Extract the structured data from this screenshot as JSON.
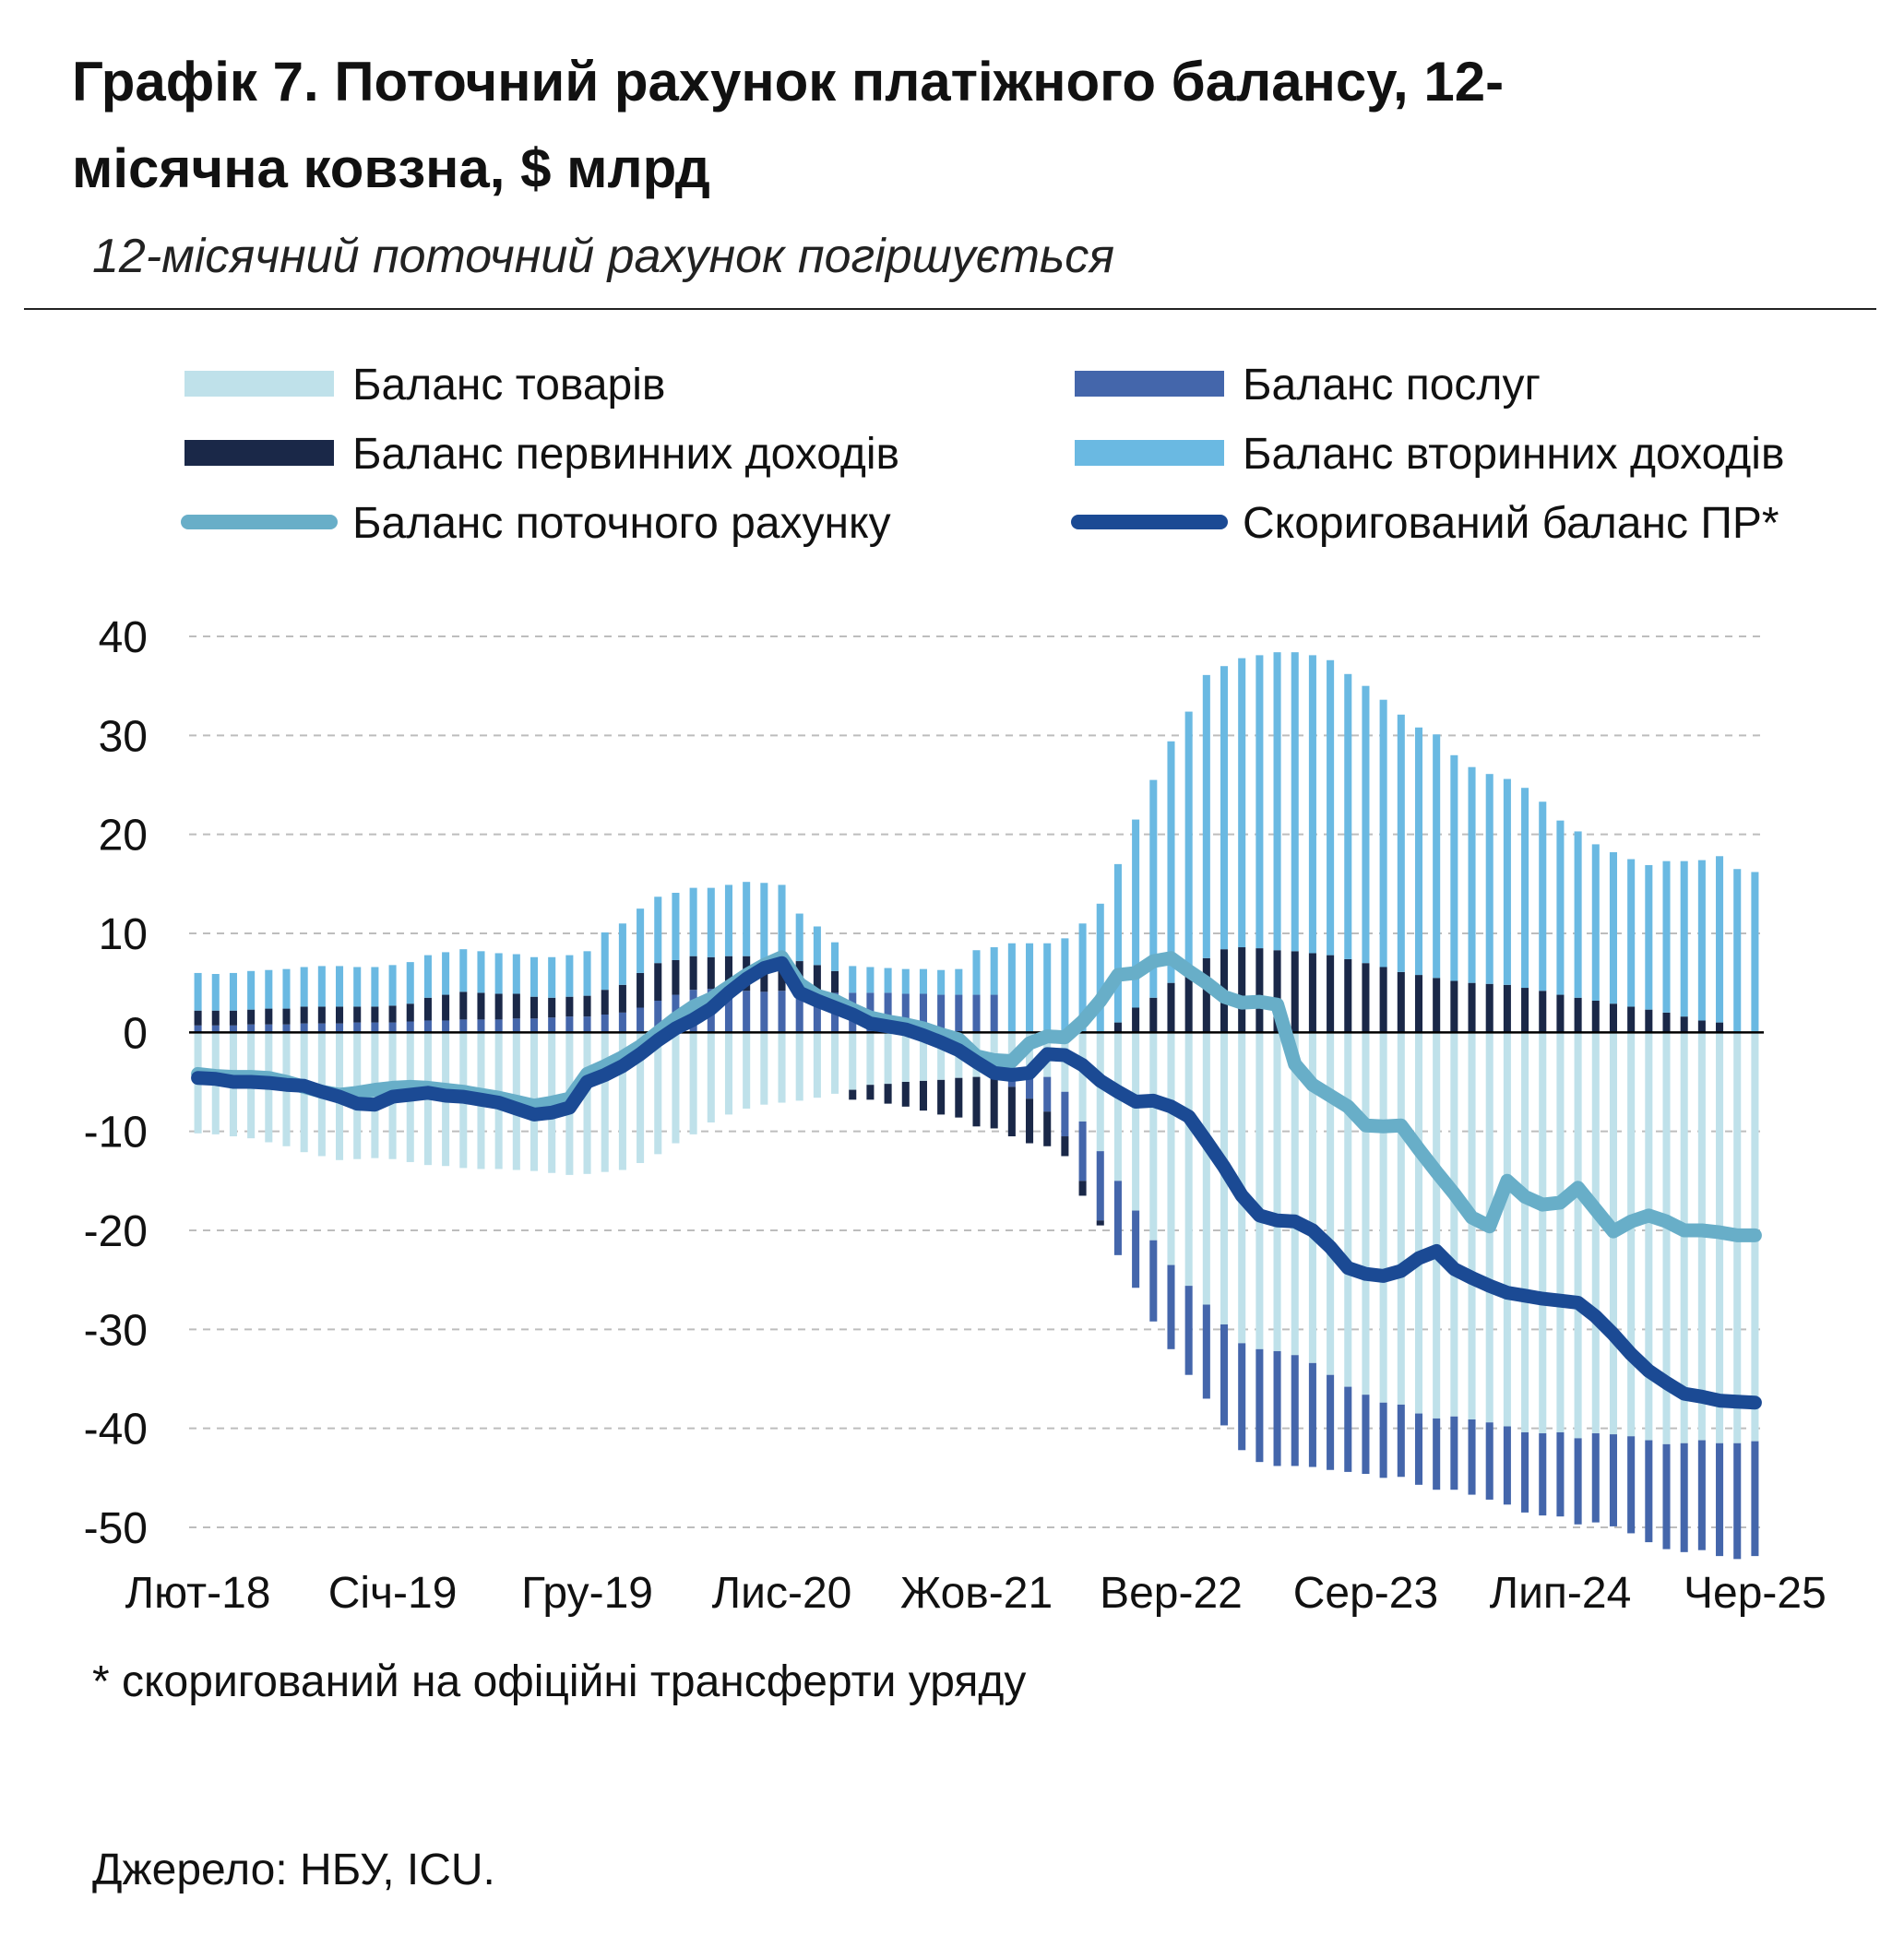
{
  "header": {
    "title": "Графік 7. Поточний рахунок платіжного балансу, 12-місячна ковзна, $ млрд",
    "subtitle": "12-місячний поточний рахунок погіршується"
  },
  "footer": {
    "footnote": "* скоригований на офіційні трансферти уряду",
    "source": "Джерело: НБУ, ICU."
  },
  "chart_data": {
    "type": "bar",
    "stacked": true,
    "legend_position": "top",
    "grid": true,
    "ylim": [
      -50,
      40
    ],
    "yticks": [
      "40",
      "30",
      "20",
      "10",
      "0",
      "-10",
      "-20",
      "-30",
      "-40",
      "-50"
    ],
    "x": [
      "Лют-18",
      "Бер-18",
      "Кві-18",
      "Тра-18",
      "Чер-18",
      "Лип-18",
      "Сер-18",
      "Вер-18",
      "Жов-18",
      "Лис-18",
      "Гру-18",
      "Січ-19",
      "Лют-19",
      "Бер-19",
      "Кві-19",
      "Тра-19",
      "Чер-19",
      "Лип-19",
      "Сер-19",
      "Вер-19",
      "Жов-19",
      "Лис-19",
      "Гру-19",
      "Січ-20",
      "Лют-20",
      "Бер-20",
      "Кві-20",
      "Тра-20",
      "Чер-20",
      "Лип-20",
      "Сер-20",
      "Вер-20",
      "Жов-20",
      "Лис-20",
      "Гру-20",
      "Січ-21",
      "Лют-21",
      "Бер-21",
      "Кві-21",
      "Тра-21",
      "Чер-21",
      "Лип-21",
      "Сер-21",
      "Вер-21",
      "Жов-21",
      "Лис-21",
      "Гру-21",
      "Січ-22",
      "Лют-22",
      "Бер-22",
      "Кві-22",
      "Тра-22",
      "Чер-22",
      "Лип-22",
      "Сер-22",
      "Вер-22",
      "Жов-22",
      "Лис-22",
      "Гру-22",
      "Січ-23",
      "Лют-23",
      "Бер-23",
      "Кві-23",
      "Тра-23",
      "Чер-23",
      "Лип-23",
      "Сер-23",
      "Вер-23",
      "Жов-23",
      "Лис-23",
      "Гру-23",
      "Січ-24",
      "Лют-24",
      "Бер-24",
      "Кві-24",
      "Тра-24",
      "Чер-24",
      "Лип-24",
      "Сер-24",
      "Вер-24",
      "Жов-24",
      "Лис-24",
      "Гру-24",
      "Січ-25",
      "Лют-25",
      "Бер-25",
      "Кві-25",
      "Тра-25",
      "Чер-25"
    ],
    "xtick_labels": [
      "Лют-18",
      "Січ-19",
      "Гру-19",
      "Лис-20",
      "Жов-21",
      "Вер-22",
      "Сер-23",
      "Лип-24",
      "Чер-25"
    ],
    "series": [
      {
        "name": "Баланс товарів",
        "kind": "bar",
        "color": "#bfe1ea",
        "values": [
          -10.2,
          -10.3,
          -10.5,
          -10.7,
          -11.1,
          -11.5,
          -12.1,
          -12.5,
          -12.9,
          -12.8,
          -12.7,
          -12.8,
          -13.1,
          -13.4,
          -13.5,
          -13.7,
          -13.8,
          -13.8,
          -13.9,
          -14,
          -14.2,
          -14.4,
          -14.3,
          -14.1,
          -13.9,
          -13.2,
          -12.3,
          -11.2,
          -10.3,
          -9.1,
          -8.3,
          -7.7,
          -7.3,
          -7.1,
          -6.9,
          -6.6,
          -6.2,
          -5.8,
          -5.3,
          -5.2,
          -5,
          -4.9,
          -4.8,
          -4.6,
          -4.5,
          -4.2,
          -4,
          -4.2,
          -4.5,
          -6,
          -9,
          -12,
          -15,
          -18,
          -21,
          -23.5,
          -25.6,
          -27.5,
          -29.5,
          -31.4,
          -32,
          -32.2,
          -32.6,
          -33.4,
          -34.6,
          -35.8,
          -36.6,
          -37.4,
          -37.6,
          -38.5,
          -39,
          -38.8,
          -39.1,
          -39.4,
          -39.8,
          -40.4,
          -40.5,
          -40.4,
          -41,
          -40.5,
          -40.6,
          -40.8,
          -41.2,
          -41.6,
          -41.5,
          -41.2,
          -41.5,
          -41.5,
          -41.3
        ]
      },
      {
        "name": "Баланс послуг",
        "kind": "bar",
        "color": "#4466ab",
        "values": [
          0.7,
          0.7,
          0.7,
          0.8,
          0.8,
          0.8,
          0.9,
          0.9,
          0.9,
          1,
          1,
          1,
          1.1,
          1.2,
          1.2,
          1.3,
          1.3,
          1.3,
          1.4,
          1.4,
          1.5,
          1.6,
          1.6,
          1.8,
          2,
          2.5,
          3.2,
          3.8,
          4.3,
          4.4,
          4.3,
          4.2,
          4.1,
          4.2,
          4.1,
          4,
          4,
          4,
          4,
          4,
          3.9,
          3.9,
          3.8,
          3.8,
          3.8,
          3.8,
          -1.5,
          -2.5,
          -3.5,
          -4.5,
          -6,
          -7,
          -7.5,
          -7.8,
          -8.2,
          -8.5,
          -9,
          -9.5,
          -10.2,
          -10.8,
          -11.4,
          -11.6,
          -11.2,
          -10.5,
          -9.6,
          -8.6,
          -8,
          -7.6,
          -7.3,
          -7.2,
          -7.2,
          -7.4,
          -7.6,
          -7.8,
          -7.9,
          -8.1,
          -8.3,
          -8.5,
          -8.7,
          -9,
          -9.3,
          -9.8,
          -10.3,
          -10.6,
          -11,
          -11.1,
          -11.4,
          -11.7,
          -11.6
        ]
      },
      {
        "name": "Баланс первинних доходів",
        "kind": "bar",
        "color": "#1a2848",
        "values": [
          1.5,
          1.5,
          1.5,
          1.5,
          1.6,
          1.6,
          1.7,
          1.7,
          1.7,
          1.6,
          1.6,
          1.7,
          1.8,
          2.3,
          2.6,
          2.8,
          2.7,
          2.6,
          2.5,
          2.2,
          2,
          2,
          2.1,
          2.5,
          2.8,
          3.5,
          3.8,
          3.5,
          3.4,
          3.2,
          3.4,
          3.5,
          3.2,
          3.2,
          3.1,
          2.8,
          2.2,
          -1,
          -1.5,
          -2,
          -2.5,
          -3,
          -3.5,
          -4,
          -5,
          -5.5,
          -5,
          -4.5,
          -3.5,
          -2,
          -1.5,
          -0.5,
          1,
          2.5,
          3.5,
          5,
          6.5,
          7.5,
          8.4,
          8.6,
          8.5,
          8.3,
          8.2,
          8,
          7.8,
          7.4,
          7,
          6.6,
          6.1,
          5.8,
          5.5,
          5.2,
          5.0,
          4.9,
          4.8,
          4.5,
          4.2,
          3.8,
          3.5,
          3.2,
          2.9,
          2.6,
          2.3,
          2,
          1.6,
          1.2,
          1,
          0,
          0
        ]
      },
      {
        "name": "Баланс вторинних доходів",
        "kind": "bar",
        "color": "#6ab9e2",
        "values": [
          3.8,
          3.7,
          3.8,
          3.9,
          3.9,
          4,
          4,
          4.1,
          4.1,
          4,
          4,
          4.1,
          4.2,
          4.3,
          4.3,
          4.3,
          4.2,
          4.1,
          4,
          4,
          4.1,
          4.2,
          4.5,
          5.8,
          6.2,
          6.5,
          6.7,
          6.8,
          6.9,
          7,
          7.2,
          7.5,
          7.8,
          7.5,
          4.8,
          3.9,
          2.9,
          2.7,
          2.6,
          2.5,
          2.5,
          2.5,
          2.5,
          2.6,
          4.5,
          4.8,
          9,
          9,
          9,
          9.5,
          11,
          13,
          16,
          19,
          22,
          24.4,
          25.9,
          28.6,
          28.6,
          29.2,
          29.6,
          30.1,
          30.2,
          30.1,
          29.8,
          28.8,
          28,
          27,
          26,
          25,
          24.6,
          22.8,
          21.8,
          21.2,
          20.8,
          20.2,
          19.1,
          17.6,
          16.8,
          15.8,
          15.3,
          14.9,
          14.6,
          15.3,
          15.7,
          16.2,
          16.8,
          16.5,
          16.2
        ]
      },
      {
        "name": "Баланс поточного рахунку",
        "kind": "line",
        "color": "#68aec8",
        "values": [
          -4.2,
          -4.4,
          -4.5,
          -4.5,
          -4.6,
          -5,
          -5.5,
          -6,
          -6.3,
          -6.1,
          -5.8,
          -5.6,
          -5.5,
          -5.6,
          -5.8,
          -6,
          -6.3,
          -6.6,
          -7,
          -7.4,
          -7.1,
          -6.7,
          -4.2,
          -3.4,
          -2.5,
          -1.4,
          0,
          1.4,
          2.6,
          3.4,
          4.6,
          5.8,
          6.8,
          7.6,
          4.9,
          3.7,
          3.2,
          2.3,
          1.5,
          1.1,
          0.8,
          0.4,
          -0.2,
          -0.7,
          -2.4,
          -2.8,
          -2.9,
          -1.1,
          -0.4,
          -0.5,
          1.1,
          3.2,
          5.8,
          6.0,
          7.2,
          7.5,
          6.2,
          5,
          3.6,
          3,
          3.1,
          2.8,
          -3.2,
          -5.3,
          -6.4,
          -7.5,
          -9.4,
          -9.5,
          -9.4,
          -11.8,
          -14.1,
          -16.3,
          -18.7,
          -19.6,
          -15,
          -16.6,
          -17.4,
          -17.2,
          -15.7,
          -17.9,
          -20.1,
          -19.1,
          -18.5,
          -19.1,
          -20,
          -20,
          -20.2,
          -20.5,
          -20.5
        ]
      },
      {
        "name": "Скоригований баланс ПР*",
        "kind": "line",
        "color": "#1b4a94",
        "values": [
          -4.6,
          -4.7,
          -5,
          -5,
          -5.1,
          -5.3,
          -5.4,
          -6,
          -6.5,
          -7.2,
          -7.3,
          -6.5,
          -6.3,
          -6.1,
          -6.4,
          -6.5,
          -6.8,
          -7.1,
          -7.7,
          -8.3,
          -8.1,
          -7.6,
          -5,
          -4.3,
          -3.4,
          -2.2,
          -0.8,
          0.4,
          1.3,
          2.4,
          4.0,
          5.4,
          6.5,
          7.0,
          4.0,
          3.2,
          2.5,
          1.8,
          0.9,
          0.6,
          0.3,
          -0.3,
          -1,
          -1.8,
          -3,
          -4.1,
          -4.3,
          -4.1,
          -2.2,
          -2.3,
          -3.3,
          -4.9,
          -6,
          -7.0,
          -6.9,
          -7.5,
          -8.5,
          -11,
          -13.6,
          -16.5,
          -18.5,
          -19.0,
          -19.1,
          -20,
          -21.7,
          -23.8,
          -24.4,
          -24.6,
          -24.1,
          -22.8,
          -22.1,
          -23.9,
          -24.8,
          -25.6,
          -26.3,
          -26.6,
          -26.9,
          -27.1,
          -27.3,
          -28.7,
          -30.5,
          -32.5,
          -34.2,
          -35.4,
          -36.5,
          -36.8,
          -37.2,
          -37.3,
          -37.4
        ]
      }
    ]
  }
}
